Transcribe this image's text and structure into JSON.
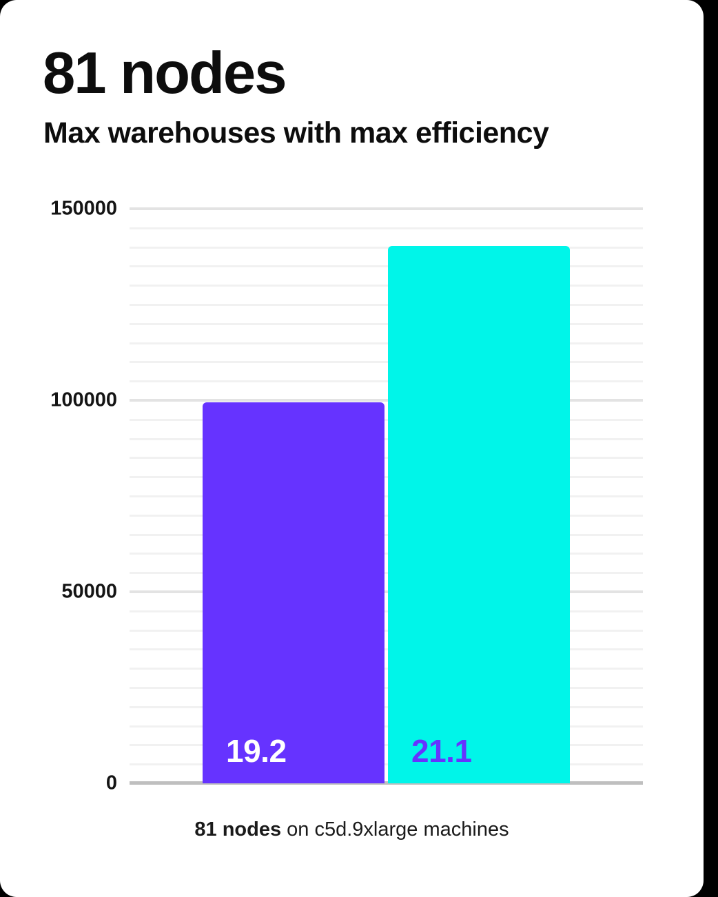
{
  "header": {
    "title": "81 nodes",
    "subtitle": "Max warehouses with max efficiency"
  },
  "caption": {
    "bold": "81 nodes",
    "rest": " on c5d.9xlarge machines"
  },
  "colors": {
    "background": "#000000",
    "card": "#ffffff",
    "text": "#0d0d0d",
    "baseline": "#bfbfbf",
    "grid_minor": "#f1f1f1",
    "grid_major": "#e3e3e3",
    "bar_purple": "#6633ff",
    "bar_cyan": "#00f5e9"
  },
  "chart_data": {
    "type": "bar",
    "title": "81 nodes",
    "subtitle": "Max warehouses with max efficiency",
    "caption": "81 nodes on c5d.9xlarge machines",
    "categories": [
      "19.2",
      "21.1"
    ],
    "values": [
      99500,
      140300
    ],
    "bars": [
      {
        "label": "19.2",
        "value": 99500,
        "color": "#6633ff",
        "label_color": "#ffffff"
      },
      {
        "label": "21.1",
        "value": 140300,
        "color": "#00f5e9",
        "label_color": "#6633ff"
      }
    ],
    "xlabel": "",
    "ylabel": "",
    "ylim": [
      0,
      150000
    ],
    "yticks": [
      0,
      50000,
      100000,
      150000
    ],
    "minor_gridline_step": 5000,
    "grid": true,
    "legend": false
  }
}
